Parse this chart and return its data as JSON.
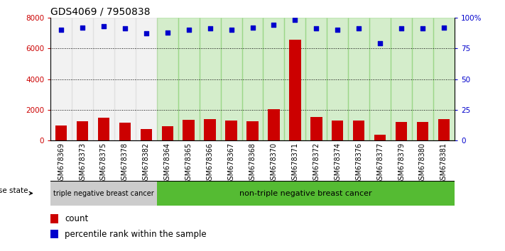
{
  "title": "GDS4069 / 7950838",
  "samples": [
    "GSM678369",
    "GSM678373",
    "GSM678375",
    "GSM678378",
    "GSM678382",
    "GSM678364",
    "GSM678365",
    "GSM678366",
    "GSM678367",
    "GSM678368",
    "GSM678370",
    "GSM678371",
    "GSM678372",
    "GSM678374",
    "GSM678376",
    "GSM678377",
    "GSM678379",
    "GSM678380",
    "GSM678381"
  ],
  "counts": [
    1000,
    1250,
    1500,
    1150,
    750,
    950,
    1350,
    1380,
    1300,
    1250,
    2050,
    6550,
    1550,
    1280,
    1280,
    380,
    1200,
    1200,
    1400
  ],
  "percentile": [
    90,
    92,
    93,
    91,
    87,
    88,
    90,
    91,
    90,
    92,
    94,
    98,
    91,
    90,
    91,
    79,
    91,
    91,
    92
  ],
  "group1_count": 5,
  "group1_label": "triple negative breast cancer",
  "group2_label": "non-triple negative breast cancer",
  "disease_state_label": "disease state",
  "legend_count": "count",
  "legend_percentile": "percentile rank within the sample",
  "ylim_left": [
    0,
    8000
  ],
  "ylim_right": [
    0,
    100
  ],
  "yticks_left": [
    0,
    2000,
    4000,
    6000,
    8000
  ],
  "yticks_right": [
    0,
    25,
    50,
    75,
    100
  ],
  "ytick_labels_right": [
    "0",
    "25",
    "50",
    "75",
    "100%"
  ],
  "bar_color": "#cc0000",
  "dot_color": "#0000cc",
  "bg_color_group1": "#cccccc",
  "bg_color_group2": "#55bb33",
  "title_fontsize": 10,
  "tick_fontsize": 7.5,
  "label_fontsize": 8.5
}
